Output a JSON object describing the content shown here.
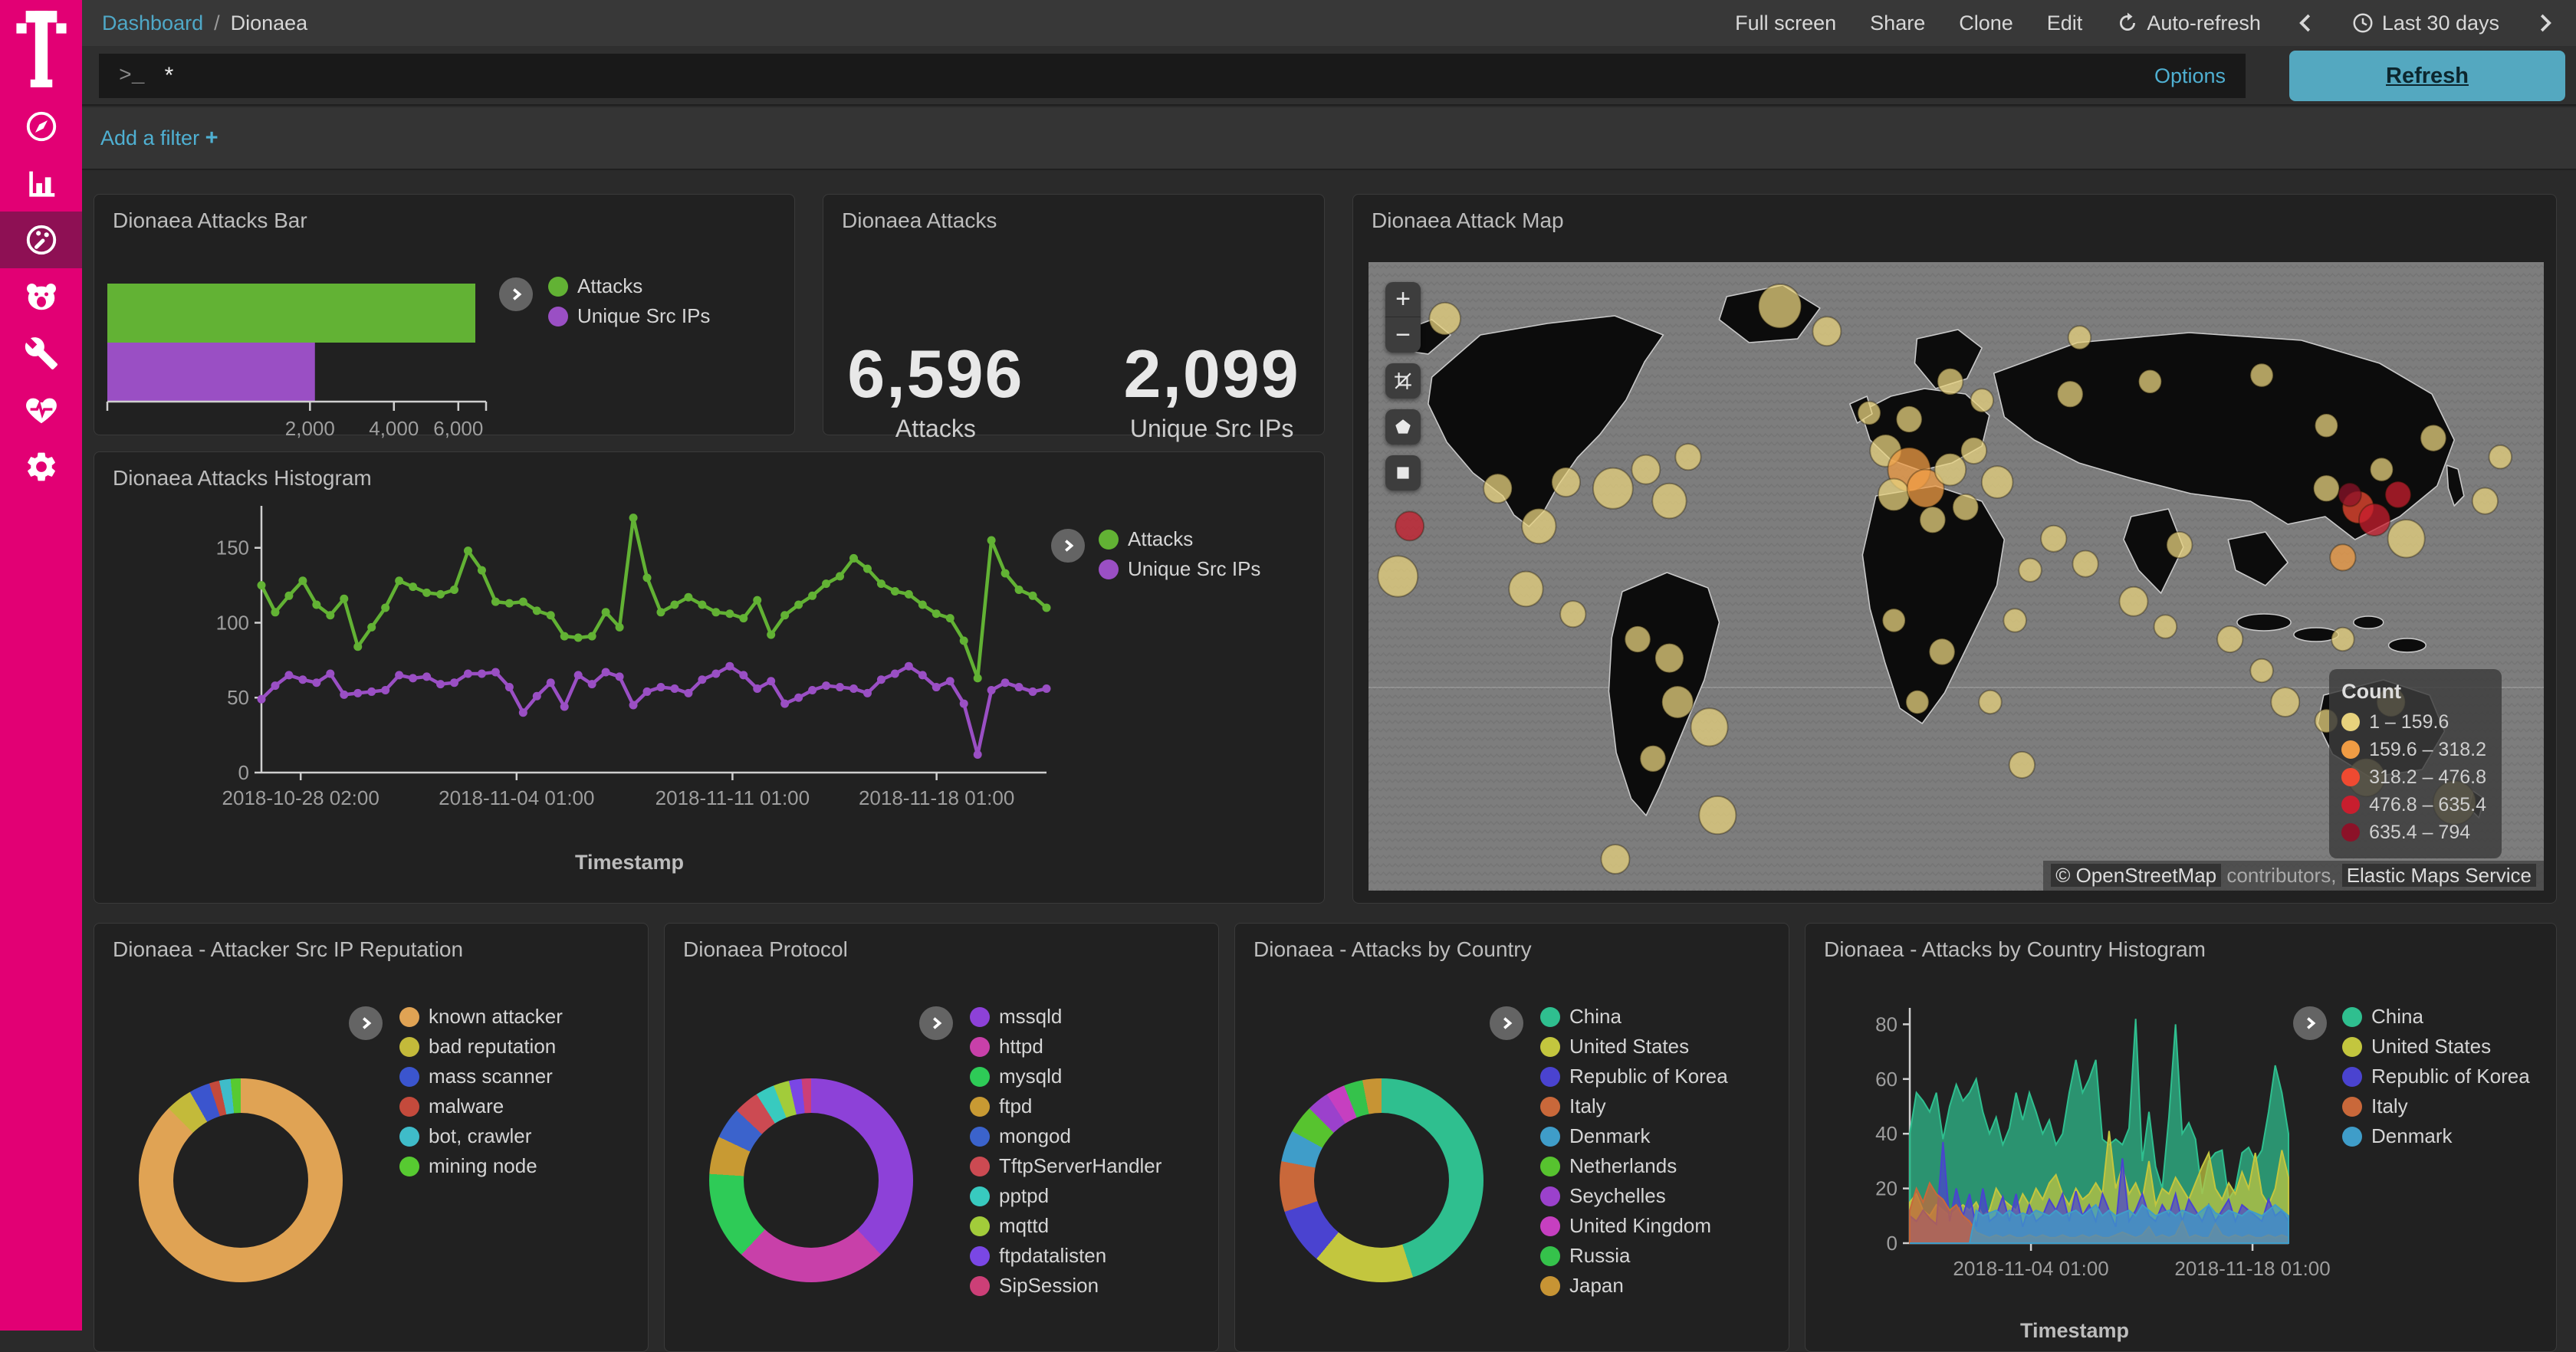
{
  "sidebar": {
    "items": [
      {
        "id": "discover",
        "icon": "compass-icon"
      },
      {
        "id": "visualize",
        "icon": "bar-chart-icon"
      },
      {
        "id": "dashboard",
        "icon": "gauge-icon",
        "selected": true
      },
      {
        "id": "tpot",
        "icon": "bear-icon"
      },
      {
        "id": "dev-tools",
        "icon": "wrench-icon"
      },
      {
        "id": "monitoring",
        "icon": "heartbeat-icon"
      },
      {
        "id": "management",
        "icon": "gear-icon"
      }
    ]
  },
  "navbar": {
    "breadcrumb_link": "Dashboard",
    "breadcrumb_sep": "/",
    "breadcrumb_current": "Dionaea",
    "action_fullscreen": "Full screen",
    "action_share": "Share",
    "action_clone": "Clone",
    "action_edit": "Edit",
    "auto_refresh": "Auto-refresh",
    "time_range": "Last 30 days"
  },
  "query_bar": {
    "prompt": ">_",
    "query": "*",
    "options": "Options",
    "refresh": "Refresh"
  },
  "filter_bar": {
    "label": "Add a filter",
    "plus": "+"
  },
  "panels": {
    "attacks_bar": {
      "title": "Dionaea Attacks Bar"
    },
    "attacks_metric": {
      "title": "Dionaea Attacks",
      "metrics": [
        {
          "value": "6,596",
          "label": "Attacks"
        },
        {
          "value": "2,099",
          "label": "Unique Src IPs"
        }
      ]
    },
    "attack_map": {
      "title": "Dionaea Attack Map",
      "legend_title": "Count",
      "tiers": [
        {
          "range": "1 – 159.6",
          "color": "#e7d27d"
        },
        {
          "range": "159.6 – 318.2",
          "color": "#f09c44"
        },
        {
          "range": "318.2 – 476.8",
          "color": "#ef4a31"
        },
        {
          "range": "476.8 – 635.4",
          "color": "#c81e2e"
        },
        {
          "range": "635.4 – 794",
          "color": "#8c1228"
        }
      ],
      "attribution_copy": "© OpenStreetMap",
      "attribution_mid": "contributors,",
      "attribution_ems": "Elastic Maps Service",
      "circles": [
        [
          6.5,
          9,
          11,
          1
        ],
        [
          3.5,
          42,
          10,
          4
        ],
        [
          2.5,
          50,
          14,
          1
        ],
        [
          11,
          36,
          10,
          1
        ],
        [
          14.5,
          42,
          12,
          1
        ],
        [
          16.8,
          35,
          10,
          1
        ],
        [
          20.8,
          36,
          14,
          1
        ],
        [
          23.6,
          33,
          10,
          1
        ],
        [
          25.6,
          38,
          12,
          1
        ],
        [
          27.2,
          31,
          9,
          1
        ],
        [
          13.4,
          52,
          12,
          1
        ],
        [
          17.4,
          56,
          9,
          1
        ],
        [
          22.9,
          60,
          9,
          1
        ],
        [
          25.6,
          63,
          10,
          1
        ],
        [
          26.3,
          70,
          11,
          1
        ],
        [
          29,
          74,
          13,
          1
        ],
        [
          24.2,
          79,
          9,
          1
        ],
        [
          29.7,
          88,
          13,
          1
        ],
        [
          21,
          95,
          10,
          1
        ],
        [
          35,
          7,
          15,
          1
        ],
        [
          39,
          11,
          10,
          1
        ],
        [
          44,
          30,
          11,
          1
        ],
        [
          46,
          33,
          15,
          2
        ],
        [
          44.7,
          37,
          11,
          1
        ],
        [
          47.4,
          36,
          13,
          2
        ],
        [
          49.5,
          33,
          11,
          1
        ],
        [
          48,
          41,
          9,
          1
        ],
        [
          50.8,
          39,
          9,
          1
        ],
        [
          51.5,
          30,
          9,
          1
        ],
        [
          53.5,
          35,
          11,
          1
        ],
        [
          46,
          25,
          9,
          1
        ],
        [
          42.6,
          24,
          8,
          1
        ],
        [
          49.5,
          19,
          9,
          1
        ],
        [
          52.2,
          22,
          8,
          1
        ],
        [
          59.7,
          21,
          9,
          1
        ],
        [
          66.5,
          19,
          8,
          1
        ],
        [
          76,
          18,
          8,
          1
        ],
        [
          81.5,
          26,
          8,
          1
        ],
        [
          58.3,
          44,
          9,
          1
        ],
        [
          61,
          48,
          9,
          1
        ],
        [
          56.3,
          49,
          8,
          1
        ],
        [
          44.7,
          57,
          8,
          1
        ],
        [
          48.8,
          62,
          9,
          1
        ],
        [
          52.9,
          70,
          8,
          1
        ],
        [
          55.6,
          80,
          9,
          1
        ],
        [
          46.7,
          70,
          8,
          1
        ],
        [
          65.1,
          54,
          10,
          1
        ],
        [
          67.8,
          58,
          8,
          1
        ],
        [
          73.3,
          60,
          9,
          1
        ],
        [
          76,
          65,
          8,
          1
        ],
        [
          78,
          70,
          10,
          1
        ],
        [
          81.5,
          73,
          8,
          1
        ],
        [
          81.5,
          36,
          9,
          1
        ],
        [
          84.2,
          39,
          11,
          3
        ],
        [
          85.6,
          41,
          11,
          4
        ],
        [
          87.6,
          37,
          9,
          4
        ],
        [
          83.5,
          37,
          8,
          5
        ],
        [
          88.3,
          44,
          13,
          1
        ],
        [
          86.2,
          33,
          8,
          1
        ],
        [
          82.9,
          47,
          9,
          2
        ],
        [
          82.9,
          60,
          8,
          1
        ],
        [
          84.9,
          82,
          13,
          1
        ],
        [
          92.4,
          86,
          15,
          1
        ],
        [
          87,
          70,
          10,
          1
        ],
        [
          90.6,
          28,
          9,
          1
        ],
        [
          95,
          38,
          9,
          1
        ],
        [
          96.3,
          31,
          8,
          1
        ],
        [
          60.5,
          12,
          8,
          1
        ],
        [
          55,
          57,
          8,
          1
        ],
        [
          69,
          45,
          9,
          1
        ]
      ]
    },
    "attacks_histogram": {
      "title": "Dionaea Attacks Histogram"
    },
    "reputation": {
      "title": "Dionaea - Attacker Src IP Reputation"
    },
    "protocol": {
      "title": "Dionaea Protocol"
    },
    "country": {
      "title": "Dionaea - Attacks by Country"
    },
    "country_histogram": {
      "title": "Dionaea - Attacks by Country Histogram"
    }
  },
  "chart_data": {
    "attacks_bar": {
      "type": "bar",
      "orientation": "horizontal",
      "scale": "sqrt",
      "series": [
        {
          "name": "Attacks",
          "color": "#62b234",
          "values": [
            6596
          ]
        },
        {
          "name": "Unique Src IPs",
          "color": "#9a4fc4",
          "values": [
            2099
          ]
        }
      ],
      "xmax": 6596,
      "xticks": [
        {
          "label": "2,000",
          "value": 2000
        },
        {
          "label": "4,000",
          "value": 4000
        },
        {
          "label": "6,000",
          "value": 6000
        }
      ]
    },
    "attacks_histogram": {
      "type": "line",
      "xlabel": "Timestamp",
      "ylim": [
        0,
        178
      ],
      "yticks": [
        0,
        50,
        100,
        150
      ],
      "xticks": [
        {
          "label": "2018-10-28 02:00",
          "f": 0.05
        },
        {
          "label": "2018-11-04 01:00",
          "f": 0.325
        },
        {
          "label": "2018-11-11 01:00",
          "f": 0.6
        },
        {
          "label": "2018-11-18 01:00",
          "f": 0.86
        }
      ],
      "series": [
        {
          "name": "Attacks",
          "color": "#62b234",
          "values": [
            125,
            107,
            118,
            128,
            112,
            105,
            116,
            84,
            97,
            110,
            128,
            124,
            120,
            119,
            122,
            148,
            135,
            114,
            113,
            114,
            108,
            105,
            91,
            90,
            91,
            107,
            97,
            170,
            130,
            107,
            112,
            117,
            112,
            107,
            106,
            103,
            115,
            92,
            105,
            112,
            118,
            126,
            131,
            143,
            136,
            126,
            121,
            119,
            112,
            106,
            103,
            88,
            63,
            155,
            133,
            122,
            118,
            110
          ]
        },
        {
          "name": "Unique Src IPs",
          "color": "#9a4fc4",
          "values": [
            49,
            58,
            65,
            62,
            60,
            66,
            52,
            53,
            54,
            55,
            65,
            63,
            64,
            59,
            60,
            66,
            66,
            67,
            57,
            40,
            51,
            60,
            44,
            65,
            59,
            67,
            64,
            45,
            54,
            57,
            56,
            53,
            62,
            66,
            71,
            65,
            56,
            61,
            46,
            50,
            55,
            58,
            57,
            56,
            53,
            62,
            66,
            71,
            65,
            57,
            61,
            46,
            12,
            55,
            60,
            57,
            54,
            56
          ]
        }
      ]
    },
    "reputation_donut": {
      "type": "pie",
      "donut": true,
      "slices": [
        {
          "label": "known attacker",
          "value": 87.5,
          "color": "#e0a354"
        },
        {
          "label": "bad reputation",
          "value": 4.2,
          "color": "#c3ba3a"
        },
        {
          "label": "mass scanner",
          "value": 3.3,
          "color": "#3b55ce"
        },
        {
          "label": "malware",
          "value": 1.6,
          "color": "#c44a3c"
        },
        {
          "label": "bot, crawler",
          "value": 1.8,
          "color": "#3fbcc9"
        },
        {
          "label": "mining node",
          "value": 1.6,
          "color": "#57ca31"
        }
      ]
    },
    "protocol_donut": {
      "type": "pie",
      "donut": true,
      "slices": [
        {
          "label": "mssqld",
          "value": 38,
          "color": "#8d41d8"
        },
        {
          "label": "httpd",
          "value": 24,
          "color": "#c840a9"
        },
        {
          "label": "mysqld",
          "value": 14,
          "color": "#2ecb57"
        },
        {
          "label": "ftpd",
          "value": 6,
          "color": "#c89a33"
        },
        {
          "label": "mongod",
          "value": 5,
          "color": "#3b63cc"
        },
        {
          "label": "TftpServerHandler",
          "value": 4,
          "color": "#cc4a52"
        },
        {
          "label": "pptpd",
          "value": 3,
          "color": "#38cabf"
        },
        {
          "label": "mqttd",
          "value": 2.5,
          "color": "#a2cc3a"
        },
        {
          "label": "ftpdatalisten",
          "value": 2,
          "color": "#7a47e5"
        },
        {
          "label": "SipSession",
          "value": 1.5,
          "color": "#cc3f77"
        }
      ]
    },
    "country_donut": {
      "type": "pie",
      "donut": true,
      "slices": [
        {
          "label": "China",
          "value": 45,
          "color": "#2fbf8f"
        },
        {
          "label": "United States",
          "value": 16,
          "color": "#c3c63e"
        },
        {
          "label": "Republic of Korea",
          "value": 9,
          "color": "#4a43d0"
        },
        {
          "label": "Italy",
          "value": 8,
          "color": "#c9683a"
        },
        {
          "label": "Denmark",
          "value": 5,
          "color": "#3f9dc9"
        },
        {
          "label": "Netherlands",
          "value": 4.5,
          "color": "#57c32f"
        },
        {
          "label": "Seychelles",
          "value": 3.5,
          "color": "#9b41cc"
        },
        {
          "label": "United Kingdom",
          "value": 3,
          "color": "#c63fc0"
        },
        {
          "label": "Russia",
          "value": 3,
          "color": "#35c24b"
        },
        {
          "label": "Japan",
          "value": 3,
          "color": "#c79434"
        }
      ]
    },
    "country_histogram": {
      "type": "area",
      "xlabel": "Timestamp",
      "ylim": [
        0,
        86
      ],
      "yticks": [
        0,
        20,
        40,
        60,
        80
      ],
      "xticks": [
        {
          "label": "2018-11-04 01:00",
          "f": 0.32
        },
        {
          "label": "2018-11-18 01:00",
          "f": 0.905
        }
      ],
      "series": [
        {
          "name": "China",
          "color": "#2fbf8f",
          "values": [
            40,
            55,
            52,
            48,
            55,
            38,
            50,
            58,
            52,
            55,
            60,
            48,
            40,
            46,
            36,
            42,
            55,
            45,
            55,
            48,
            40,
            45,
            36,
            40,
            55,
            67,
            55,
            60,
            67,
            38,
            36,
            38,
            36,
            42,
            82,
            30,
            48,
            28,
            20,
            46,
            80,
            40,
            44,
            38,
            18,
            30,
            33,
            34,
            16,
            20,
            33,
            35,
            30,
            34,
            48,
            65,
            55,
            40
          ]
        },
        {
          "name": "United States",
          "color": "#c3c63e",
          "values": [
            15,
            18,
            12,
            10,
            14,
            12,
            10,
            12,
            14,
            12,
            15,
            10,
            12,
            20,
            16,
            14,
            12,
            18,
            14,
            20,
            16,
            22,
            25,
            18,
            14,
            20,
            16,
            18,
            22,
            18,
            41,
            20,
            28,
            18,
            22,
            16,
            30,
            14,
            20,
            18,
            24,
            20,
            16,
            22,
            28,
            33,
            20,
            16,
            22,
            18,
            26,
            20,
            33,
            18,
            14,
            20,
            34,
            24
          ]
        },
        {
          "name": "Republic of Korea",
          "color": "#4a43d0",
          "values": [
            10,
            8,
            12,
            9,
            7,
            37,
            8,
            20,
            10,
            18,
            6,
            20,
            8,
            10,
            17,
            8,
            18,
            6,
            14,
            8,
            10,
            16,
            12,
            18,
            8,
            19,
            10,
            14,
            8,
            18,
            12,
            6,
            31,
            8,
            12,
            18,
            10,
            8,
            14,
            10,
            18,
            8,
            16,
            12,
            8,
            14,
            8,
            12,
            16,
            8,
            14,
            12,
            10,
            8,
            16,
            10,
            12,
            8
          ]
        },
        {
          "name": "Italy",
          "color": "#c9683a",
          "values": [
            12,
            20,
            15,
            22,
            18,
            16,
            12,
            14,
            10,
            8,
            4,
            3,
            2,
            3,
            2,
            3,
            2,
            2,
            3,
            2,
            3,
            2,
            2,
            3,
            2,
            2,
            3,
            2,
            3,
            2,
            2,
            3,
            4,
            3,
            2,
            3,
            6,
            2,
            3,
            2,
            3,
            8,
            2,
            3,
            2,
            2,
            7,
            3,
            2,
            3,
            2,
            3,
            2,
            2,
            3,
            2,
            3,
            2
          ]
        },
        {
          "name": "Denmark",
          "color": "#3f9dc9",
          "values": [
            0,
            0,
            0,
            0,
            0,
            0,
            0,
            0,
            0,
            0,
            12,
            10,
            11,
            12,
            10,
            12,
            10,
            11,
            10,
            12,
            11,
            10,
            12,
            10,
            11,
            12,
            10,
            12,
            14,
            10,
            12,
            10,
            11,
            12,
            10,
            14,
            12,
            10,
            11,
            12,
            10,
            12,
            11,
            10,
            12,
            14,
            11,
            10,
            12,
            11,
            10,
            12,
            11,
            10,
            12,
            14,
            12,
            10
          ]
        }
      ]
    }
  }
}
